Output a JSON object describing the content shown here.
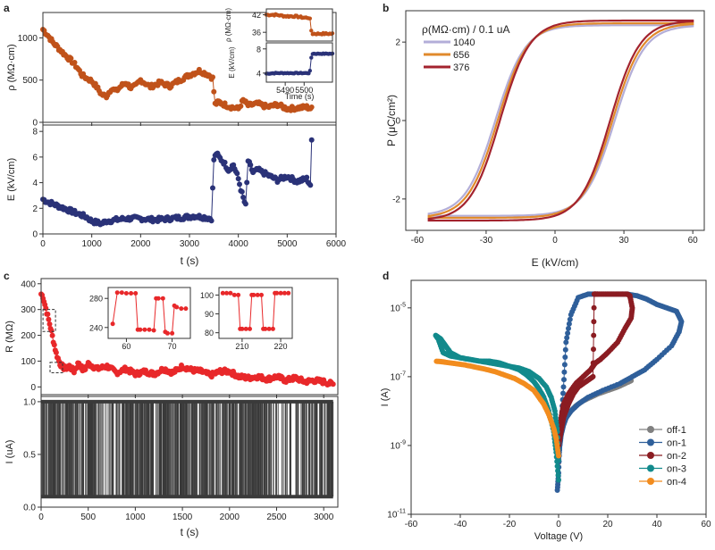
{
  "chart_data": [
    {
      "panel": "a",
      "type": "line",
      "title": "",
      "xlabel": "t (s)",
      "xlim": [
        0,
        6000
      ],
      "xticks": [
        0,
        1000,
        2000,
        3000,
        4000,
        5000,
        6000
      ],
      "subplots": [
        {
          "ylabel": "ρ (MΩ·cm)",
          "ylim": [
            0,
            1300
          ],
          "yticks": [
            0,
            500,
            1000
          ],
          "color": "#c0521a",
          "x": [
            0,
            100,
            200,
            350,
            450,
            600,
            700,
            800,
            900,
            1000,
            1100,
            1200,
            1300,
            1400,
            1500,
            1600,
            1700,
            1800,
            1900,
            2000,
            2200,
            2400,
            2600,
            2800,
            3000,
            3200,
            3400,
            3480,
            3520,
            3600,
            3800,
            4000,
            4100,
            4200,
            4400,
            4600,
            4800,
            5000,
            5200,
            5400,
            5500
          ],
          "y": [
            1100,
            1030,
            950,
            860,
            800,
            720,
            650,
            560,
            520,
            490,
            420,
            330,
            310,
            400,
            370,
            430,
            470,
            410,
            430,
            500,
            420,
            470,
            430,
            500,
            560,
            610,
            560,
            520,
            210,
            240,
            190,
            160,
            260,
            200,
            220,
            180,
            210,
            160,
            170,
            180,
            160
          ]
        },
        {
          "ylabel": "E (kV/cm)",
          "ylim": [
            0,
            8.5
          ],
          "yticks": [
            0,
            2,
            4,
            6,
            8
          ],
          "color": "#2a3278",
          "x": [
            0,
            100,
            300,
            500,
            700,
            900,
            1000,
            1100,
            1200,
            1300,
            1500,
            1700,
            2000,
            2300,
            2600,
            2900,
            3100,
            3300,
            3450,
            3500,
            3550,
            3600,
            3700,
            3800,
            3900,
            4000,
            4050,
            4100,
            4150,
            4200,
            4300,
            4400,
            4600,
            4800,
            5000,
            5200,
            5400,
            5480,
            5500
          ],
          "y": [
            2.7,
            2.5,
            2.2,
            1.9,
            1.6,
            1.3,
            1.0,
            0.9,
            0.8,
            1.0,
            1.1,
            1.2,
            1.2,
            1.1,
            1.2,
            1.3,
            1.4,
            1.3,
            1.2,
            5.8,
            6.3,
            6.0,
            5.6,
            5.0,
            5.4,
            4.3,
            3.5,
            2.8,
            2.2,
            5.7,
            4.8,
            5.0,
            4.6,
            4.2,
            4.5,
            4.1,
            4.3,
            3.8,
            7.2
          ]
        }
      ],
      "inset": {
        "xlabel": "Time (s)",
        "xlim": [
          5480,
          5515
        ],
        "xticks": [
          5490,
          5500
        ],
        "rho_ylabel": "ρ (MΩ·cm)",
        "rho_yticks": [
          36,
          42
        ],
        "rho_x": [
          5480,
          5485,
          5490,
          5495,
          5500,
          5503,
          5504,
          5508,
          5515
        ],
        "rho_y": [
          42,
          42,
          41.5,
          41.5,
          41,
          41,
          35.5,
          35.5,
          35.5
        ],
        "e_ylabel": "E (kV/cm)",
        "e_yticks": [
          4,
          8
        ],
        "e_x": [
          5480,
          5485,
          5490,
          5495,
          5500,
          5503,
          5504,
          5508,
          5515
        ],
        "e_y": [
          3.9,
          4.0,
          4.0,
          4.0,
          4.0,
          4.0,
          7.2,
          7.2,
          7.2
        ]
      }
    },
    {
      "panel": "b",
      "type": "line",
      "title": "ρ(MΩ·cm)  / 0.1 uA",
      "xlabel": "E (kV/cm)",
      "ylabel": "P (μC/cm²)",
      "xlim": [
        -65,
        65
      ],
      "ylim": [
        -2.8,
        2.8
      ],
      "xticks": [
        -60,
        -30,
        0,
        30,
        60
      ],
      "yticks": [
        -2,
        0,
        2
      ],
      "series": [
        {
          "name": "1040",
          "color": "#b3aed8",
          "pr": 2.43,
          "ec": 26,
          "s": 6
        },
        {
          "name": "656",
          "color": "#e08a2c",
          "pr": 2.48,
          "ec": 25,
          "s": 6
        },
        {
          "name": "376",
          "color": "#a3232e",
          "pr": 2.55,
          "ec": 24,
          "s": 6
        }
      ]
    },
    {
      "panel": "c",
      "type": "line",
      "xlabel": "t (s)",
      "xlim": [
        0,
        3150
      ],
      "xticks": [
        0,
        500,
        1000,
        1500,
        2000,
        2500,
        3000
      ],
      "subplots": [
        {
          "ylabel": "R (MΩ)",
          "ylim": [
            -30,
            420
          ],
          "yticks": [
            0,
            100,
            200,
            300,
            400
          ],
          "color": "#e8282a",
          "x": [
            0,
            20,
            40,
            60,
            80,
            100,
            130,
            160,
            200,
            250,
            300,
            350,
            400,
            450,
            500,
            600,
            700,
            800,
            900,
            1000,
            1100,
            1200,
            1300,
            1400,
            1500,
            1600,
            1700,
            1800,
            1900,
            2000,
            2100,
            2200,
            2300,
            2400,
            2500,
            2600,
            2700,
            2800,
            2900,
            3000,
            3100
          ],
          "y": [
            360,
            350,
            320,
            290,
            260,
            230,
            180,
            130,
            90,
            70,
            80,
            60,
            95,
            60,
            90,
            70,
            80,
            55,
            70,
            50,
            60,
            50,
            70,
            55,
            80,
            65,
            60,
            45,
            60,
            60,
            40,
            35,
            40,
            30,
            40,
            25,
            35,
            20,
            25,
            20,
            10
          ]
        },
        {
          "ylabel": "I (uA)",
          "ylim": [
            0,
            1.05
          ],
          "yticks": [
            0.0,
            0.5,
            1.0
          ],
          "color": "#3a3a3a",
          "high": 1.0,
          "low": 0.1
        }
      ],
      "inset1": {
        "xlim": [
          56,
          74
        ],
        "ylim": [
          225,
          295
        ],
        "xticks": [
          60,
          70
        ],
        "yticks": [
          240,
          280
        ],
        "x": [
          57,
          58,
          59,
          60,
          61,
          62,
          62.5,
          63,
          64,
          65,
          66,
          66.5,
          67,
          68,
          68.5,
          69,
          70,
          70.5,
          71,
          72,
          73
        ],
        "y": [
          245,
          288,
          288,
          287,
          287,
          287,
          237,
          237,
          237,
          237,
          236,
          280,
          280,
          280,
          234,
          232,
          232,
          270,
          268,
          266,
          266
        ]
      },
      "inset2": {
        "xlim": [
          204,
          223
        ],
        "ylim": [
          77,
          104
        ],
        "xticks": [
          210,
          220
        ],
        "yticks": [
          80,
          90,
          100
        ],
        "x": [
          205,
          206,
          207,
          208,
          209,
          209.5,
          210,
          211,
          212,
          212.5,
          213,
          214,
          215,
          215.5,
          216,
          217,
          218,
          218.5,
          219,
          220,
          221,
          222
        ],
        "y": [
          101,
          101,
          101,
          100,
          100,
          82,
          82,
          82,
          82,
          100,
          100,
          100,
          100,
          82,
          82,
          82,
          82,
          101,
          101,
          101,
          101,
          101
        ]
      }
    },
    {
      "panel": "d",
      "type": "scatter",
      "xlabel": "Voltage (V)",
      "ylabel": "I (A)",
      "xlim": [
        -60,
        60
      ],
      "xticks": [
        -60,
        -40,
        -20,
        0,
        20,
        40,
        60
      ],
      "ylog": true,
      "ylim_exp": [
        -11,
        -4.2
      ],
      "yticks_exp": [
        -11,
        -9,
        -7,
        -5
      ],
      "series": [
        {
          "name": "off-1",
          "color": "#808080",
          "x": [
            0,
            0.5,
            1,
            2,
            3,
            5,
            7,
            10,
            13,
            16,
            20,
            24,
            27,
            30
          ],
          "logy": [
            -9.5,
            -8.9,
            -8.6,
            -8.4,
            -8.2,
            -8.0,
            -7.85,
            -7.7,
            -7.6,
            -7.5,
            -7.4,
            -7.3,
            -7.2,
            -7.1
          ]
        },
        {
          "name": "on-1",
          "color": "#2f5f9a",
          "x": [
            -0.5,
            0,
            0.5,
            1,
            2,
            3,
            5,
            8,
            12,
            15,
            20,
            25,
            28,
            32,
            36,
            40,
            44,
            48,
            50,
            49,
            46,
            40,
            35,
            30,
            25,
            18,
            12,
            8,
            5,
            3,
            2,
            1,
            0.5,
            0
          ],
          "logy": [
            -10.3,
            -9.8,
            -8.8,
            -8.4,
            -7.3,
            -6.0,
            -5.2,
            -4.7,
            -4.6,
            -4.6,
            -4.6,
            -4.6,
            -4.6,
            -4.65,
            -4.75,
            -4.9,
            -5.0,
            -5.1,
            -5.4,
            -5.7,
            -6.1,
            -6.5,
            -6.8,
            -7.0,
            -7.2,
            -7.4,
            -7.6,
            -7.8,
            -8.0,
            -8.2,
            -8.4,
            -8.7,
            -9.0,
            -9.4
          ]
        },
        {
          "name": "on-2",
          "color": "#8b1c22",
          "x": [
            0,
            1,
            2,
            4,
            6,
            8,
            10,
            12,
            14,
            14.5,
            15,
            16,
            18,
            20,
            22,
            24,
            26,
            28,
            29,
            30,
            29.5,
            27,
            24,
            20,
            17,
            15,
            13,
            10,
            7,
            4,
            2,
            1,
            0
          ],
          "logy": [
            -9.0,
            -8.6,
            -8.2,
            -7.8,
            -7.5,
            -7.3,
            -7.2,
            -7.1,
            -7.0,
            -4.6,
            -4.6,
            -4.6,
            -4.6,
            -4.6,
            -4.6,
            -4.6,
            -4.6,
            -4.6,
            -4.65,
            -5.0,
            -5.3,
            -5.6,
            -6.0,
            -6.3,
            -6.5,
            -6.6,
            -6.8,
            -7.0,
            -7.2,
            -7.5,
            -7.8,
            -8.2,
            -8.7
          ]
        },
        {
          "name": "on-3",
          "color": "#128a8c",
          "x": [
            0,
            -1,
            -2,
            -4,
            -6,
            -8,
            -10,
            -13,
            -16,
            -20,
            -24,
            -28,
            -32,
            -36,
            -40,
            -44,
            -46,
            -48,
            -50,
            -49,
            -47,
            -44,
            -40,
            -36,
            -32,
            -28,
            -24,
            -20,
            -16,
            -12,
            -8,
            -5,
            -3,
            -1.5,
            -0.5,
            0
          ],
          "logy": [
            -10.0,
            -9.2,
            -8.6,
            -8.0,
            -7.6,
            -7.35,
            -7.15,
            -6.95,
            -6.8,
            -6.7,
            -6.6,
            -6.55,
            -6.55,
            -6.5,
            -6.45,
            -6.3,
            -6.1,
            -5.9,
            -5.8,
            -5.9,
            -6.3,
            -6.4,
            -6.45,
            -6.5,
            -6.55,
            -6.6,
            -6.65,
            -6.7,
            -6.75,
            -6.85,
            -7.05,
            -7.3,
            -7.6,
            -8.0,
            -8.6,
            -9.6
          ]
        },
        {
          "name": "on-4",
          "color": "#f28c1e",
          "x": [
            0,
            -1,
            -2,
            -4,
            -6,
            -8,
            -10,
            -14,
            -18,
            -22,
            -26,
            -30,
            -34,
            -38,
            -42,
            -46,
            -48,
            -50
          ],
          "logy": [
            -9.3,
            -8.8,
            -8.5,
            -8.1,
            -7.8,
            -7.6,
            -7.4,
            -7.2,
            -7.05,
            -6.95,
            -6.85,
            -6.78,
            -6.72,
            -6.66,
            -6.62,
            -6.58,
            -6.56,
            -6.55
          ]
        }
      ]
    }
  ],
  "panel_labels": {
    "a": "a",
    "b": "b",
    "c": "c",
    "d": "d"
  }
}
